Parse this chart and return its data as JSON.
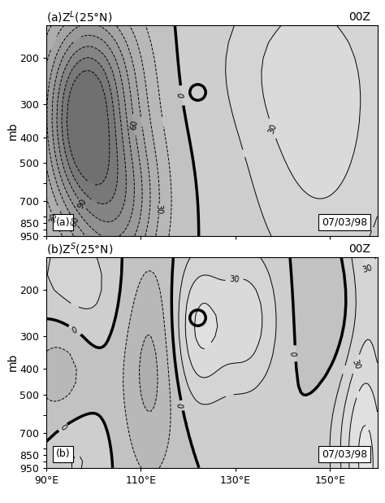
{
  "title_a": "(a)Z$^L$(25°N)",
  "title_b": "(b)Z$^S$(25°N)",
  "time_label": "00Z",
  "date_label": "07/03/98",
  "pressure_levels": [
    200,
    300,
    400,
    500,
    700,
    850,
    950
  ],
  "zero_linewidth": 2.5,
  "panel_a_label": "(a)",
  "panel_b_label": "(b)",
  "circle_a": [
    122,
    270
  ],
  "circle_b": [
    122,
    255
  ]
}
